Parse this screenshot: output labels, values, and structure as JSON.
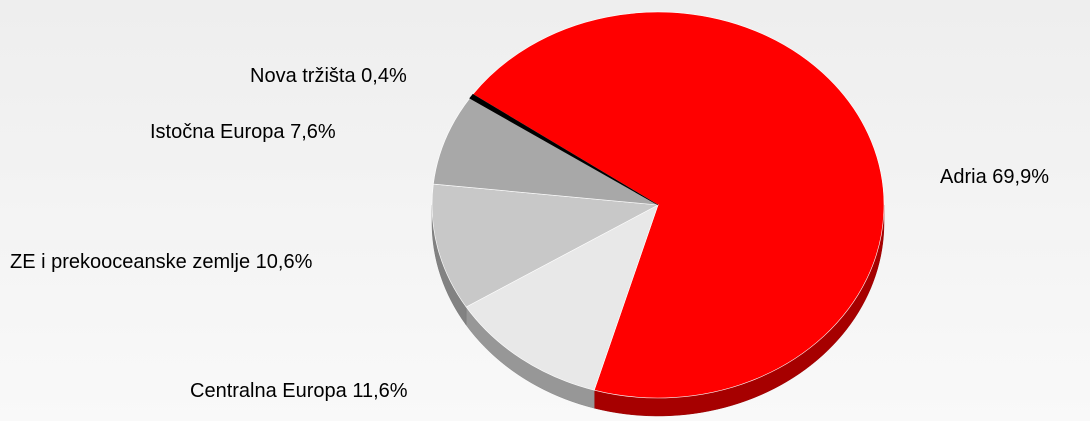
{
  "chart_data": {
    "type": "pie",
    "categories": [
      "Adria",
      "Centralna Europa",
      "ZE i prekooceanske zemlje",
      "Istočna Europa",
      "Nova tržišta"
    ],
    "values": [
      69.9,
      11.6,
      10.6,
      7.6,
      0.4
    ],
    "value_labels": [
      "69,9%",
      "11,6%",
      "10,6%",
      "7,6%",
      "0,4%"
    ],
    "colors": [
      "#ff0000",
      "#e8e8e8",
      "#c8c8c8",
      "#a8a8a8",
      "#000000"
    ]
  }
}
